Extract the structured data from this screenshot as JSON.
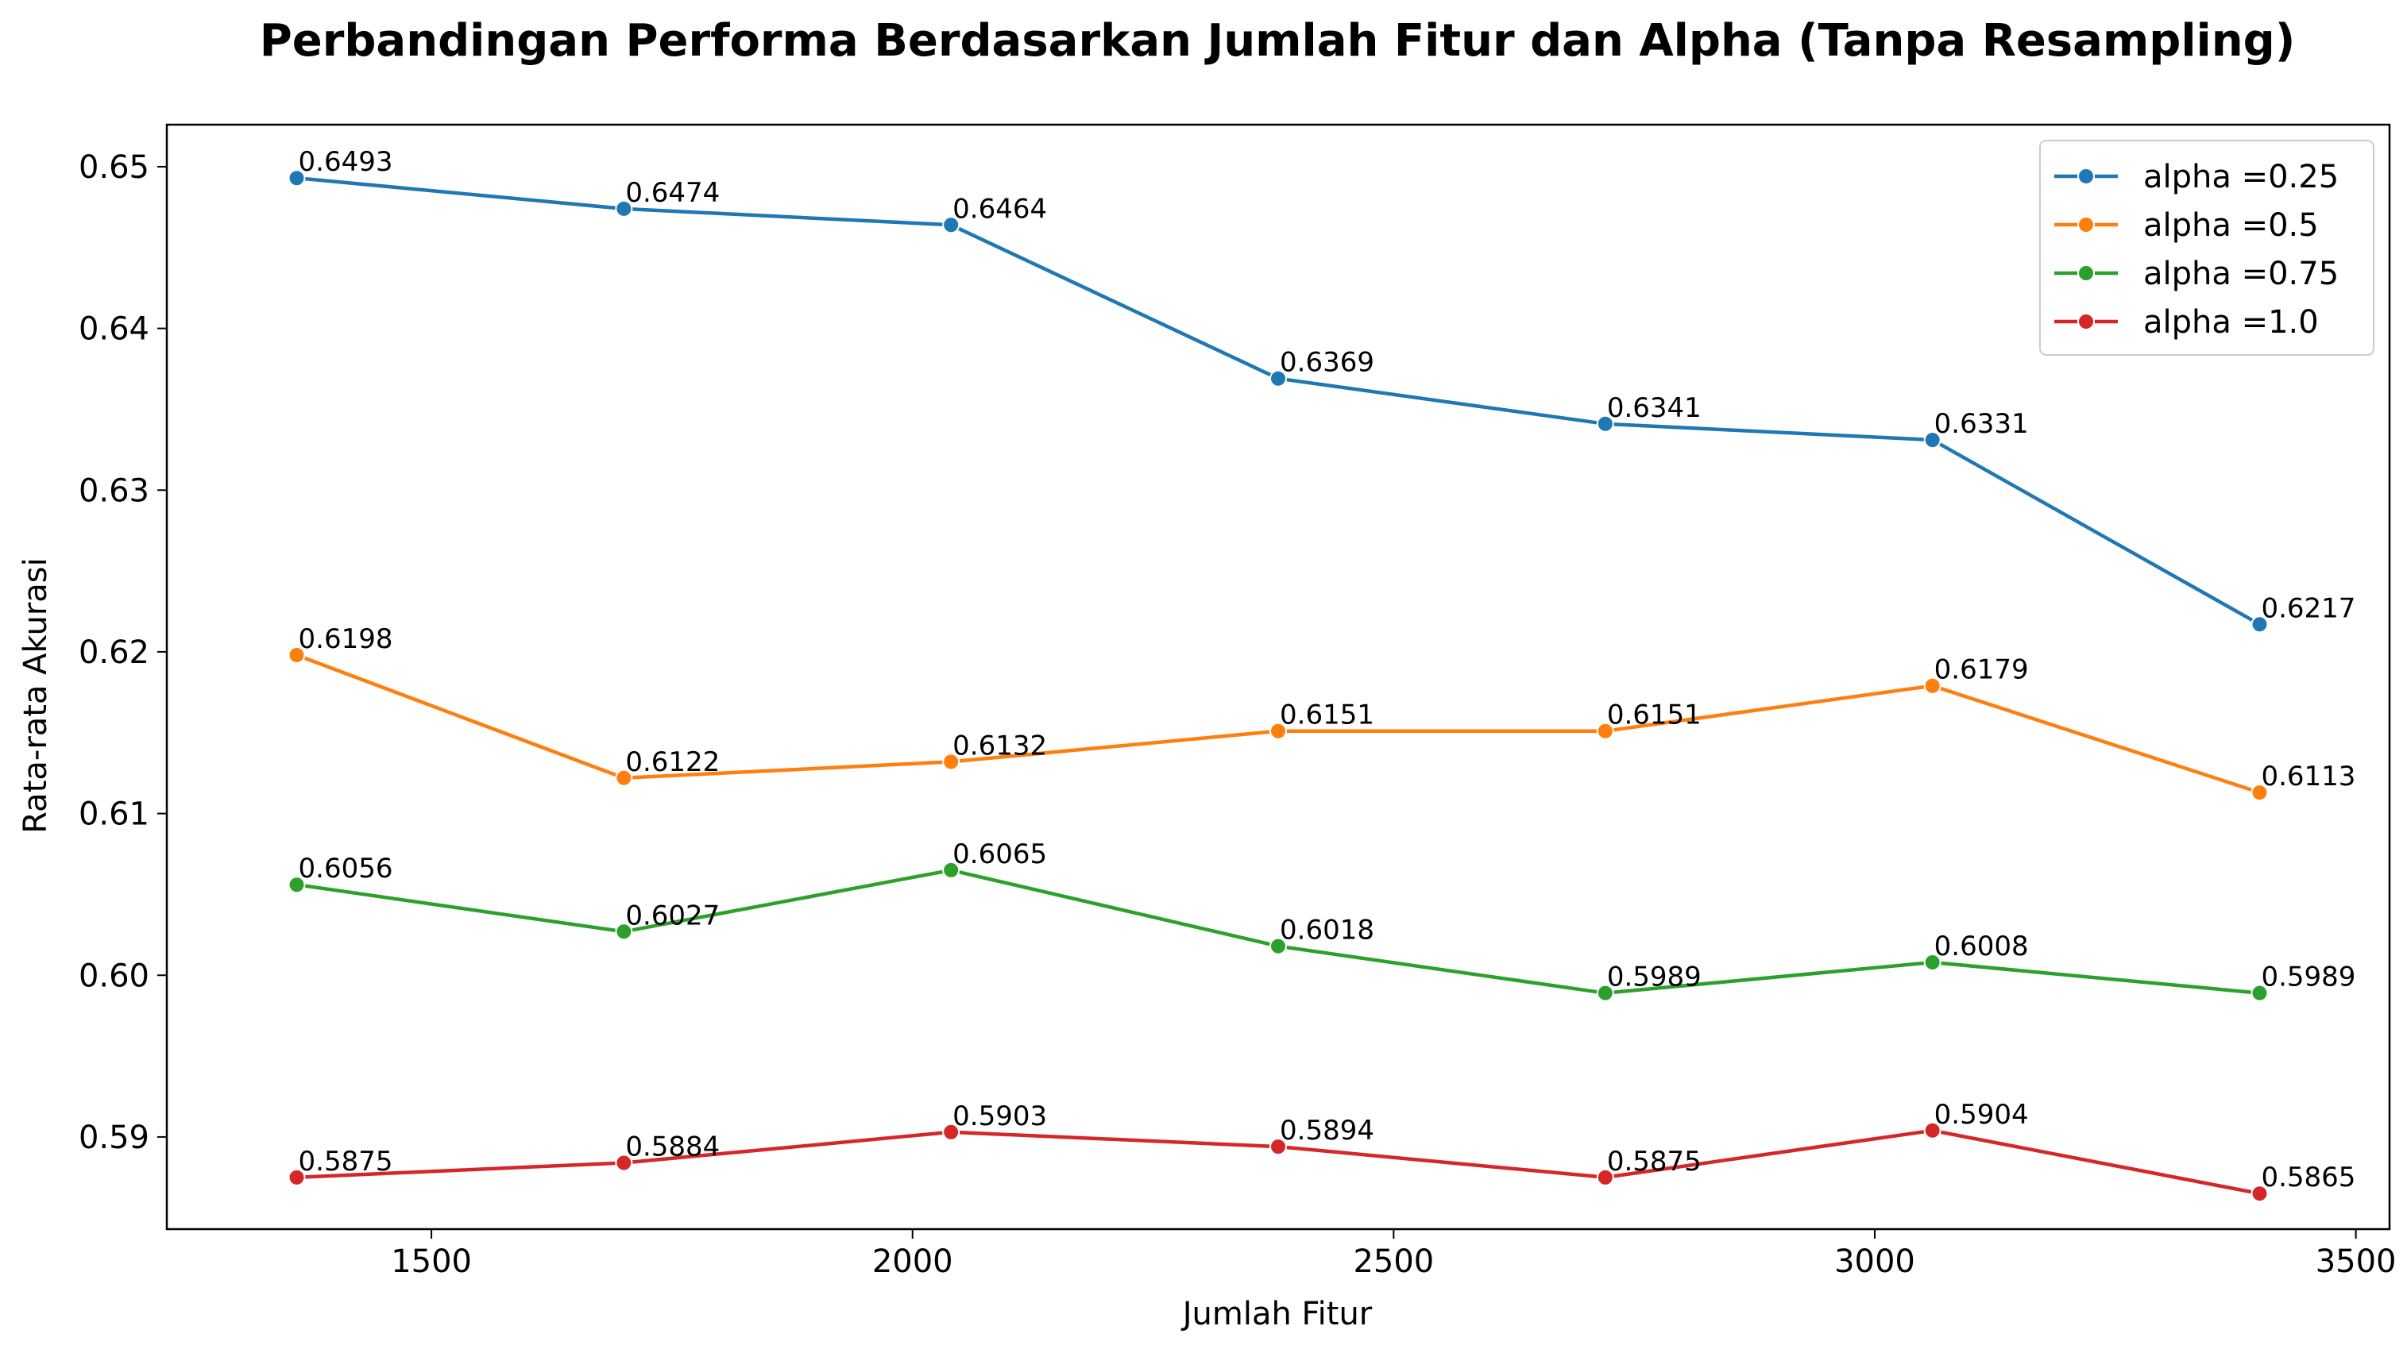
{
  "chart_data": {
    "type": "line",
    "title": "Perbandingan Performa Berdasarkan Jumlah Fitur dan Alpha (Tanpa Resampling)",
    "xlabel": "Jumlah Fitur",
    "ylabel": "Rata-rata Akurasi",
    "x": [
      1360,
      1700,
      2040,
      2380,
      2720,
      3060,
      3400
    ],
    "xlim": [
      1225,
      3535
    ],
    "ylim": [
      0.5843,
      0.6526
    ],
    "xticks": [
      1500,
      2000,
      2500,
      3000,
      3500
    ],
    "yticks": [
      0.59,
      0.6,
      0.61,
      0.62,
      0.63,
      0.64,
      0.65
    ],
    "ytick_labels": [
      "0.59",
      "0.60",
      "0.61",
      "0.62",
      "0.63",
      "0.64",
      "0.65"
    ],
    "grid": false,
    "legend_position": "top-right",
    "series": [
      {
        "name": "alpha =0.25",
        "color": "#1f77b4",
        "values": [
          0.6493,
          0.6474,
          0.6464,
          0.6369,
          0.6341,
          0.6331,
          0.6217
        ],
        "labels": [
          "0.6493",
          "0.6474",
          "0.6464",
          "0.6369",
          "0.6341",
          "0.6331",
          "0.6217"
        ]
      },
      {
        "name": "alpha =0.5",
        "color": "#ff7f0e",
        "values": [
          0.6198,
          0.6122,
          0.6132,
          0.6151,
          0.6151,
          0.6179,
          0.6113
        ],
        "labels": [
          "0.6198",
          "0.6122",
          "0.6132",
          "0.6151",
          "0.6151",
          "0.6179",
          "0.6113"
        ]
      },
      {
        "name": "alpha =0.75",
        "color": "#2ca02c",
        "values": [
          0.6056,
          0.6027,
          0.6065,
          0.6018,
          0.5989,
          0.6008,
          0.5989
        ],
        "labels": [
          "0.6056",
          "0.6027",
          "0.6065",
          "0.6018",
          "0.5989",
          "0.6008",
          "0.5989"
        ]
      },
      {
        "name": "alpha =1.0",
        "color": "#d62728",
        "values": [
          0.5875,
          0.5884,
          0.5903,
          0.5894,
          0.5875,
          0.5904,
          0.5865
        ],
        "labels": [
          "0.5875",
          "0.5884",
          "0.5903",
          "0.5894",
          "0.5875",
          "0.5904",
          "0.5865"
        ]
      }
    ]
  }
}
